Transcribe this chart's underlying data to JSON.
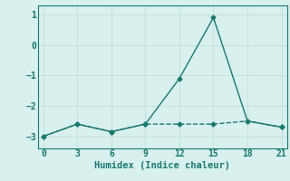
{
  "x": [
    0,
    3,
    6,
    9,
    12,
    15,
    18,
    21
  ],
  "y_solid": [
    -3.0,
    -2.6,
    -2.85,
    -2.6,
    -1.1,
    0.9,
    -2.5,
    -2.7
  ],
  "y_dashed": [
    -3.0,
    -2.6,
    -2.85,
    -2.6,
    -2.6,
    -2.6,
    -2.5,
    -2.7
  ],
  "line_color": "#1a7a6e",
  "bg_color": "#d8f0ee",
  "grid_color": "#c0ddd9",
  "xlabel": "Humidex (Indice chaleur)",
  "ylim": [
    -3.4,
    1.3
  ],
  "xlim": [
    -0.5,
    21.5
  ],
  "yticks": [
    -3,
    -2,
    -1,
    0,
    1
  ],
  "xticks": [
    0,
    3,
    6,
    9,
    12,
    15,
    18,
    21
  ],
  "marker": "D",
  "marker_size": 2.5,
  "linewidth": 1.0
}
